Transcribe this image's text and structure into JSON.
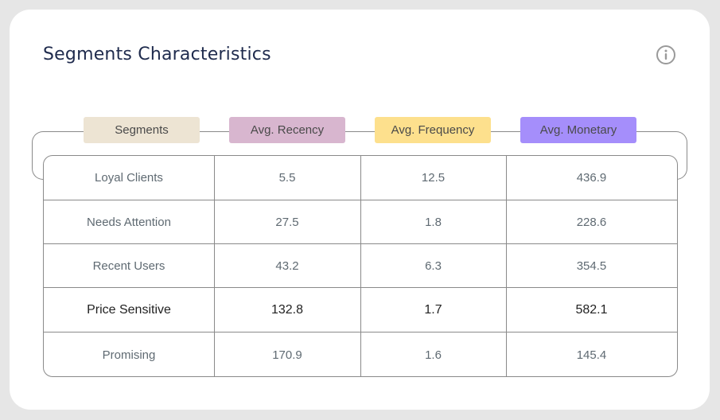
{
  "title": "Segments Characteristics",
  "info_icon": "info-circle-icon",
  "columns": [
    {
      "label": "Segments",
      "color": "#ede4d3"
    },
    {
      "label": "Avg. Recency",
      "color": "#d8b6cf"
    },
    {
      "label": "Avg. Frequency",
      "color": "#fde08d"
    },
    {
      "label": "Avg. Monetary",
      "color": "#a58efb"
    }
  ],
  "rows": [
    {
      "segment": "Loyal Clients",
      "recency": "5.5",
      "frequency": "12.5",
      "monetary": "436.9"
    },
    {
      "segment": "Needs Attention",
      "recency": "27.5",
      "frequency": "1.8",
      "monetary": "228.6"
    },
    {
      "segment": "Recent Users",
      "recency": "43.2",
      "frequency": "6.3",
      "monetary": "354.5"
    },
    {
      "segment": "Price Sensitive",
      "recency": "132.8",
      "frequency": "1.7",
      "monetary": "582.1"
    },
    {
      "segment": "Promising",
      "recency": "170.9",
      "frequency": "1.6",
      "monetary": "145.4"
    }
  ]
}
